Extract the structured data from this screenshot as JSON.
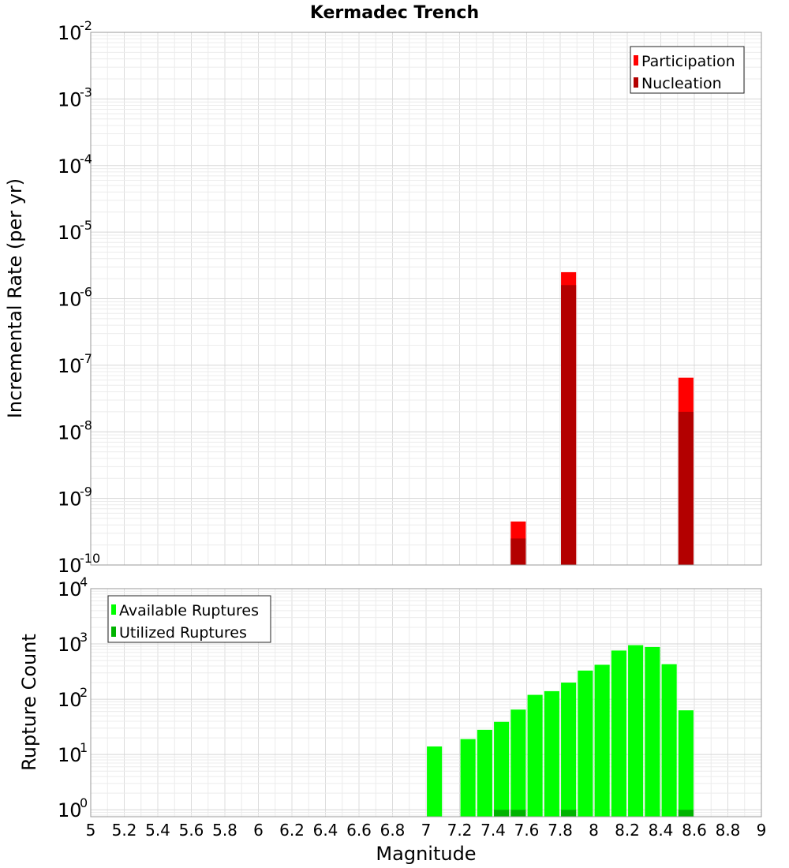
{
  "title": "Kermadec Trench",
  "x_axis_label": "Magnitude",
  "chart_data": [
    {
      "type": "bar",
      "panel": "top",
      "ylabel": "Incremental Rate (per yr)",
      "yscale": "log",
      "ylim": [
        1e-10,
        0.01
      ],
      "ytick_labels": [
        {
          "base": "10",
          "exp": "-2"
        },
        {
          "base": "10",
          "exp": "-3"
        },
        {
          "base": "10",
          "exp": "-4"
        },
        {
          "base": "10",
          "exp": "-5"
        },
        {
          "base": "10",
          "exp": "-6"
        },
        {
          "base": "10",
          "exp": "-7"
        },
        {
          "base": "10",
          "exp": "-8"
        },
        {
          "base": "10",
          "exp": "-9"
        },
        {
          "base": "10",
          "exp": "-10"
        }
      ],
      "xlim": [
        5,
        9
      ],
      "bar_width": 0.09,
      "grid": true,
      "legend_position": "top-right",
      "series": [
        {
          "name": "Participation",
          "color": "#ff0000",
          "x": [
            7.55,
            7.85,
            8.55
          ],
          "values": [
            4.5e-10,
            2.5e-06,
            6.5e-08
          ]
        },
        {
          "name": "Nucleation",
          "color": "#b30000",
          "x": [
            7.55,
            7.85,
            8.55
          ],
          "values": [
            2.5e-10,
            1.6e-06,
            2e-08
          ]
        }
      ]
    },
    {
      "type": "bar",
      "panel": "bottom",
      "ylabel": "Rupture Count",
      "yscale": "log",
      "ylim": [
        0.75,
        10000
      ],
      "ytick_labels": [
        {
          "base": "10",
          "exp": "4"
        },
        {
          "base": "10",
          "exp": "3"
        },
        {
          "base": "10",
          "exp": "2"
        },
        {
          "base": "10",
          "exp": "1"
        },
        {
          "base": "10",
          "exp": "0"
        }
      ],
      "xlabel": "Magnitude",
      "xlim": [
        5,
        9
      ],
      "xtick_labels": [
        "5",
        "5.2",
        "5.4",
        "5.6",
        "5.8",
        "6",
        "6.2",
        "6.4",
        "6.6",
        "6.8",
        "7",
        "7.2",
        "7.4",
        "7.6",
        "7.8",
        "8",
        "8.2",
        "8.4",
        "8.6",
        "8.8",
        "9"
      ],
      "bar_width": 0.09,
      "grid": true,
      "legend_position": "top-left",
      "series": [
        {
          "name": "Available Ruptures",
          "color": "#00ff00",
          "x": [
            7.05,
            7.25,
            7.35,
            7.45,
            7.55,
            7.65,
            7.75,
            7.85,
            7.95,
            8.05,
            8.15,
            8.25,
            8.35,
            8.45,
            8.55
          ],
          "values": [
            14,
            19,
            28,
            39,
            65,
            120,
            140,
            200,
            330,
            420,
            760,
            950,
            880,
            430,
            63
          ]
        },
        {
          "name": "Utilized Ruptures",
          "color": "#00b300",
          "x": [
            7.45,
            7.55,
            7.85,
            8.55
          ],
          "values": [
            1,
            1,
            1,
            1
          ]
        }
      ]
    }
  ]
}
